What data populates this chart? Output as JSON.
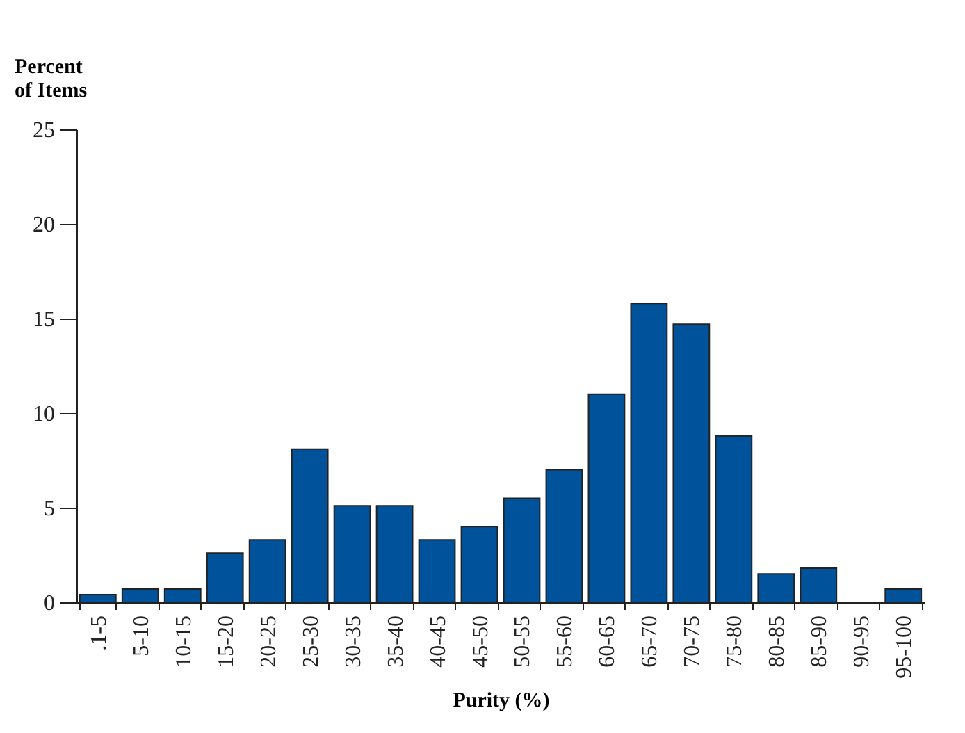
{
  "chart_data": {
    "type": "bar",
    "xlabel": "Purity (%)",
    "ylabel": "Percent\nof Items",
    "categories": [
      ".1-5",
      "5-10",
      "10-15",
      "15-20",
      "20-25",
      "25-30",
      "30-35",
      "35-40",
      "40-45",
      "45-50",
      "50-55",
      "55-60",
      "60-65",
      "65-70",
      "70-75",
      "75-80",
      "80-85",
      "85-90",
      "90-95",
      "95-100"
    ],
    "values": [
      0.4,
      0.7,
      0.7,
      2.6,
      3.3,
      8.1,
      5.1,
      5.1,
      3.3,
      4.0,
      5.5,
      7.0,
      11.0,
      15.8,
      14.7,
      8.8,
      1.5,
      1.8,
      0,
      0.7
    ],
    "color": "#00539b",
    "ylim": [
      0,
      25
    ],
    "yticks": [
      0,
      5,
      10,
      15,
      20,
      25
    ],
    "grid": false
  }
}
